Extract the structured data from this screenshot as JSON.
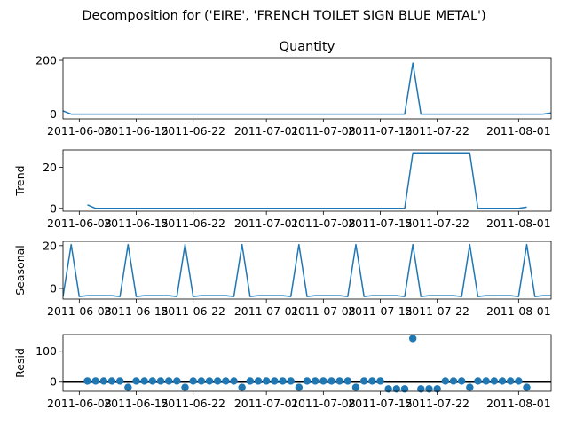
{
  "suptitle": "Decomposition for ('EIRE', 'FRENCH TOILET SIGN BLUE METAL')",
  "colors": {
    "series": "#1f77b4",
    "axis": "#000000",
    "background": "#ffffff"
  },
  "chart_data": [
    {
      "type": "line",
      "panel": "observed",
      "title": "Quantity",
      "ylabel": "",
      "x": [
        "2011-06-06",
        "2011-06-07",
        "2011-06-08",
        "2011-06-09",
        "2011-06-10",
        "2011-06-11",
        "2011-06-12",
        "2011-06-13",
        "2011-06-14",
        "2011-06-15",
        "2011-06-16",
        "2011-06-17",
        "2011-06-18",
        "2011-06-19",
        "2011-06-20",
        "2011-06-21",
        "2011-06-22",
        "2011-06-23",
        "2011-06-24",
        "2011-06-25",
        "2011-06-26",
        "2011-06-27",
        "2011-06-28",
        "2011-06-29",
        "2011-06-30",
        "2011-07-01",
        "2011-07-02",
        "2011-07-03",
        "2011-07-04",
        "2011-07-05",
        "2011-07-06",
        "2011-07-07",
        "2011-07-08",
        "2011-07-09",
        "2011-07-10",
        "2011-07-11",
        "2011-07-12",
        "2011-07-13",
        "2011-07-14",
        "2011-07-15",
        "2011-07-16",
        "2011-07-17",
        "2011-07-18",
        "2011-07-19",
        "2011-07-20",
        "2011-07-21",
        "2011-07-22",
        "2011-07-23",
        "2011-07-24",
        "2011-07-25",
        "2011-07-26",
        "2011-07-27",
        "2011-07-28",
        "2011-07-29",
        "2011-07-30",
        "2011-07-31",
        "2011-08-01",
        "2011-08-02",
        "2011-08-03",
        "2011-08-04",
        "2011-08-05"
      ],
      "values": [
        12,
        0,
        0,
        0,
        0,
        0,
        0,
        0,
        0,
        0,
        0,
        0,
        0,
        0,
        0,
        0,
        0,
        0,
        0,
        0,
        0,
        0,
        0,
        0,
        0,
        0,
        0,
        0,
        0,
        0,
        0,
        0,
        0,
        0,
        0,
        0,
        0,
        0,
        0,
        0,
        0,
        0,
        0,
        190,
        0,
        0,
        0,
        0,
        0,
        0,
        0,
        0,
        0,
        0,
        0,
        0,
        0,
        0,
        0,
        0,
        4
      ],
      "yticks": [
        0,
        200
      ],
      "ylim": [
        -18,
        210
      ],
      "xticks": [
        "2011-06-08",
        "2011-06-15",
        "2011-06-22",
        "2011-07-01",
        "2011-07-08",
        "2011-07-15",
        "2011-07-22",
        "2011-08-01"
      ],
      "grid": false
    },
    {
      "type": "line",
      "panel": "trend",
      "title": "",
      "ylabel": "Trend",
      "x": [
        "2011-06-09",
        "2011-06-10",
        "2011-06-11",
        "2011-06-12",
        "2011-06-13",
        "2011-06-14",
        "2011-06-15",
        "2011-06-16",
        "2011-06-17",
        "2011-06-18",
        "2011-06-19",
        "2011-06-20",
        "2011-06-21",
        "2011-06-22",
        "2011-06-23",
        "2011-06-24",
        "2011-06-25",
        "2011-06-26",
        "2011-06-27",
        "2011-06-28",
        "2011-06-29",
        "2011-06-30",
        "2011-07-01",
        "2011-07-02",
        "2011-07-03",
        "2011-07-04",
        "2011-07-05",
        "2011-07-06",
        "2011-07-07",
        "2011-07-08",
        "2011-07-09",
        "2011-07-10",
        "2011-07-11",
        "2011-07-12",
        "2011-07-13",
        "2011-07-14",
        "2011-07-15",
        "2011-07-16",
        "2011-07-17",
        "2011-07-18",
        "2011-07-19",
        "2011-07-20",
        "2011-07-21",
        "2011-07-22",
        "2011-07-23",
        "2011-07-24",
        "2011-07-25",
        "2011-07-26",
        "2011-07-27",
        "2011-07-28",
        "2011-07-29",
        "2011-07-30",
        "2011-07-31",
        "2011-08-01",
        "2011-08-02"
      ],
      "values": [
        1.7,
        0,
        0,
        0,
        0,
        0,
        0,
        0,
        0,
        0,
        0,
        0,
        0,
        0,
        0,
        0,
        0,
        0,
        0,
        0,
        0,
        0,
        0,
        0,
        0,
        0,
        0,
        0,
        0,
        0,
        0,
        0,
        0,
        0,
        0,
        0,
        0,
        0,
        0,
        0,
        27.1,
        27.1,
        27.1,
        27.1,
        27.1,
        27.1,
        27.1,
        27.1,
        0,
        0,
        0,
        0,
        0,
        0,
        0.6
      ],
      "yticks": [
        0,
        20
      ],
      "ylim": [
        -1.4,
        28.5
      ],
      "xticks": [
        "2011-06-08",
        "2011-06-15",
        "2011-06-22",
        "2011-07-01",
        "2011-07-08",
        "2011-07-15",
        "2011-07-22",
        "2011-08-01"
      ],
      "grid": false
    },
    {
      "type": "line",
      "panel": "seasonal",
      "title": "",
      "ylabel": "Seasonal",
      "x": [
        "2011-06-06",
        "2011-06-07",
        "2011-06-08",
        "2011-06-09",
        "2011-06-10",
        "2011-06-11",
        "2011-06-12",
        "2011-06-13",
        "2011-06-14",
        "2011-06-15",
        "2011-06-16",
        "2011-06-17",
        "2011-06-18",
        "2011-06-19",
        "2011-06-20",
        "2011-06-21",
        "2011-06-22",
        "2011-06-23",
        "2011-06-24",
        "2011-06-25",
        "2011-06-26",
        "2011-06-27",
        "2011-06-28",
        "2011-06-29",
        "2011-06-30",
        "2011-07-01",
        "2011-07-02",
        "2011-07-03",
        "2011-07-04",
        "2011-07-05",
        "2011-07-06",
        "2011-07-07",
        "2011-07-08",
        "2011-07-09",
        "2011-07-10",
        "2011-07-11",
        "2011-07-12",
        "2011-07-13",
        "2011-07-14",
        "2011-07-15",
        "2011-07-16",
        "2011-07-17",
        "2011-07-18",
        "2011-07-19",
        "2011-07-20",
        "2011-07-21",
        "2011-07-22",
        "2011-07-23",
        "2011-07-24",
        "2011-07-25",
        "2011-07-26",
        "2011-07-27",
        "2011-07-28",
        "2011-07-29",
        "2011-07-30",
        "2011-07-31",
        "2011-08-01",
        "2011-08-02",
        "2011-08-03",
        "2011-08-04",
        "2011-08-05"
      ],
      "values": [
        -3.8,
        20.5,
        -3.8,
        -3.4,
        -3.4,
        -3.4,
        -3.4,
        -3.8,
        20.5,
        -3.8,
        -3.4,
        -3.4,
        -3.4,
        -3.4,
        -3.8,
        20.5,
        -3.8,
        -3.4,
        -3.4,
        -3.4,
        -3.4,
        -3.8,
        20.5,
        -3.8,
        -3.4,
        -3.4,
        -3.4,
        -3.4,
        -3.8,
        20.5,
        -3.8,
        -3.4,
        -3.4,
        -3.4,
        -3.4,
        -3.8,
        20.5,
        -3.8,
        -3.4,
        -3.4,
        -3.4,
        -3.4,
        -3.8,
        20.5,
        -3.8,
        -3.4,
        -3.4,
        -3.4,
        -3.4,
        -3.8,
        20.5,
        -3.8,
        -3.4,
        -3.4,
        -3.4,
        -3.4,
        -3.8,
        20.5,
        -3.8,
        -3.4,
        -3.4
      ],
      "yticks": [
        0,
        20
      ],
      "ylim": [
        -5.0,
        22.0
      ],
      "xticks": [
        "2011-06-08",
        "2011-06-15",
        "2011-06-22",
        "2011-07-01",
        "2011-07-08",
        "2011-07-15",
        "2011-07-22",
        "2011-08-01"
      ],
      "grid": false
    },
    {
      "type": "scatter",
      "panel": "resid",
      "title": "",
      "ylabel": "Resid",
      "x": [
        "2011-06-09",
        "2011-06-10",
        "2011-06-11",
        "2011-06-12",
        "2011-06-13",
        "2011-06-14",
        "2011-06-15",
        "2011-06-16",
        "2011-06-17",
        "2011-06-18",
        "2011-06-19",
        "2011-06-20",
        "2011-06-21",
        "2011-06-22",
        "2011-06-23",
        "2011-06-24",
        "2011-06-25",
        "2011-06-26",
        "2011-06-27",
        "2011-06-28",
        "2011-06-29",
        "2011-06-30",
        "2011-07-01",
        "2011-07-02",
        "2011-07-03",
        "2011-07-04",
        "2011-07-05",
        "2011-07-06",
        "2011-07-07",
        "2011-07-08",
        "2011-07-09",
        "2011-07-10",
        "2011-07-11",
        "2011-07-12",
        "2011-07-13",
        "2011-07-14",
        "2011-07-15",
        "2011-07-16",
        "2011-07-17",
        "2011-07-18",
        "2011-07-19",
        "2011-07-20",
        "2011-07-21",
        "2011-07-22",
        "2011-07-23",
        "2011-07-24",
        "2011-07-25",
        "2011-07-26",
        "2011-07-27",
        "2011-07-28",
        "2011-07-29",
        "2011-07-30",
        "2011-07-31",
        "2011-08-01",
        "2011-08-02"
      ],
      "values": [
        1,
        1,
        1,
        1,
        1,
        -20,
        1,
        1,
        1,
        1,
        1,
        1,
        -20,
        1,
        1,
        1,
        1,
        1,
        1,
        -20,
        1,
        1,
        1,
        1,
        1,
        1,
        -20,
        1,
        1,
        1,
        1,
        1,
        1,
        -20,
        1,
        1,
        1,
        -25,
        -25,
        -25,
        142,
        -25,
        -25,
        -25,
        1,
        1,
        1,
        -20,
        1,
        1,
        1,
        1,
        1,
        1,
        -20
      ],
      "yticks": [
        0,
        100
      ],
      "ylim": [
        -33,
        155
      ],
      "zero_line": true,
      "xticks": [
        "2011-06-08",
        "2011-06-15",
        "2011-06-22",
        "2011-07-01",
        "2011-07-08",
        "2011-07-15",
        "2011-07-22",
        "2011-08-01"
      ],
      "grid": false
    }
  ]
}
